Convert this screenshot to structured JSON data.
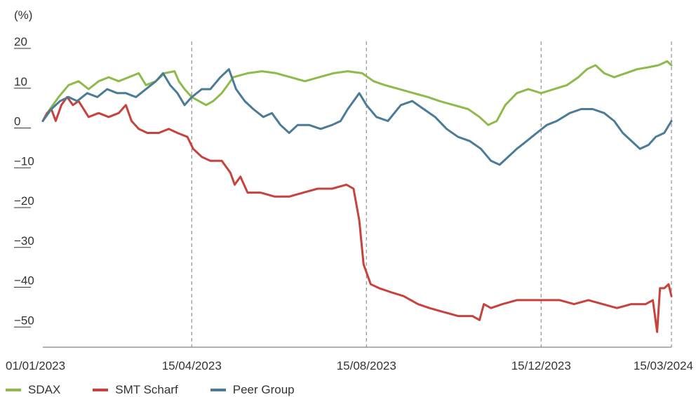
{
  "chart_data": {
    "type": "line",
    "ylabel": "(%)",
    "ylim": [
      -57,
      20
    ],
    "yticks": [
      20,
      10,
      0,
      -10,
      -20,
      -30,
      -40,
      -50
    ],
    "ytick_labels": [
      "20",
      "10",
      "0",
      "−10",
      "−20",
      "−30",
      "−40",
      "−50"
    ],
    "xlim": [
      "2023-01-01",
      "2024-03-15"
    ],
    "x_ticks": [
      {
        "date": "2023-01-01",
        "label": "01/01/2023"
      },
      {
        "date": "2023-04-15",
        "label": "15/04/2023"
      },
      {
        "date": "2023-08-15",
        "label": "15/08/2023"
      },
      {
        "date": "2023-12-15",
        "label": "15/12/2023"
      },
      {
        "date": "2024-03-15",
        "label": "15/03/2024"
      }
    ],
    "vertical_dashed_lines": [
      "2023-04-15",
      "2023-08-15",
      "2023-12-15",
      "2024-03-15"
    ],
    "legend_position": "bottom-left",
    "series": [
      {
        "name": "SDAX",
        "color": "#8dba4a",
        "points": [
          [
            "2023-01-01",
            0
          ],
          [
            "2023-01-06",
            3
          ],
          [
            "2023-01-12",
            6
          ],
          [
            "2023-01-19",
            9
          ],
          [
            "2023-01-26",
            10
          ],
          [
            "2023-02-02",
            8
          ],
          [
            "2023-02-09",
            10
          ],
          [
            "2023-02-16",
            11
          ],
          [
            "2023-02-23",
            10
          ],
          [
            "2023-03-02",
            11
          ],
          [
            "2023-03-09",
            12
          ],
          [
            "2023-03-14",
            9
          ],
          [
            "2023-03-21",
            10
          ],
          [
            "2023-03-27",
            12
          ],
          [
            "2023-04-03",
            12.5
          ],
          [
            "2023-04-06",
            10
          ],
          [
            "2023-04-10",
            8
          ],
          [
            "2023-04-15",
            6
          ],
          [
            "2023-04-20",
            5
          ],
          [
            "2023-04-25",
            4
          ],
          [
            "2023-04-30",
            5
          ],
          [
            "2023-05-06",
            7
          ],
          [
            "2023-05-14",
            11
          ],
          [
            "2023-05-24",
            12
          ],
          [
            "2023-06-03",
            12.5
          ],
          [
            "2023-06-13",
            12
          ],
          [
            "2023-06-23",
            11
          ],
          [
            "2023-07-03",
            10
          ],
          [
            "2023-07-13",
            11
          ],
          [
            "2023-07-23",
            12
          ],
          [
            "2023-08-02",
            12.5
          ],
          [
            "2023-08-12",
            12
          ],
          [
            "2023-08-20",
            10
          ],
          [
            "2023-08-28",
            9
          ],
          [
            "2023-09-07",
            8
          ],
          [
            "2023-09-17",
            7
          ],
          [
            "2023-09-27",
            6
          ],
          [
            "2023-10-05",
            5
          ],
          [
            "2023-10-15",
            4
          ],
          [
            "2023-10-25",
            3
          ],
          [
            "2023-11-02",
            1
          ],
          [
            "2023-11-08",
            -1
          ],
          [
            "2023-11-14",
            0
          ],
          [
            "2023-11-20",
            4
          ],
          [
            "2023-11-28",
            7
          ],
          [
            "2023-12-06",
            8
          ],
          [
            "2023-12-15",
            7
          ],
          [
            "2023-12-24",
            8
          ],
          [
            "2024-01-02",
            9
          ],
          [
            "2024-01-10",
            11
          ],
          [
            "2024-01-16",
            13
          ],
          [
            "2024-01-22",
            14
          ],
          [
            "2024-01-28",
            12
          ],
          [
            "2024-02-04",
            11
          ],
          [
            "2024-02-12",
            12
          ],
          [
            "2024-02-20",
            13
          ],
          [
            "2024-02-28",
            13.5
          ],
          [
            "2024-03-06",
            14
          ],
          [
            "2024-03-12",
            15
          ],
          [
            "2024-03-15",
            14
          ]
        ]
      },
      {
        "name": "SMT Scharf",
        "color": "#c8413c",
        "points": [
          [
            "2023-01-01",
            0
          ],
          [
            "2023-01-04",
            2
          ],
          [
            "2023-01-07",
            3
          ],
          [
            "2023-01-10",
            0
          ],
          [
            "2023-01-14",
            4
          ],
          [
            "2023-01-18",
            6
          ],
          [
            "2023-01-22",
            4
          ],
          [
            "2023-01-26",
            5
          ],
          [
            "2023-02-02",
            1
          ],
          [
            "2023-02-09",
            2
          ],
          [
            "2023-02-16",
            1
          ],
          [
            "2023-02-23",
            2
          ],
          [
            "2023-02-28",
            4
          ],
          [
            "2023-03-04",
            0
          ],
          [
            "2023-03-09",
            -2
          ],
          [
            "2023-03-15",
            -3
          ],
          [
            "2023-03-23",
            -3
          ],
          [
            "2023-03-30",
            -2
          ],
          [
            "2023-04-05",
            -3
          ],
          [
            "2023-04-12",
            -4
          ],
          [
            "2023-04-16",
            -7
          ],
          [
            "2023-04-22",
            -9
          ],
          [
            "2023-04-28",
            -10
          ],
          [
            "2023-05-06",
            -10
          ],
          [
            "2023-05-12",
            -13
          ],
          [
            "2023-05-15",
            -16
          ],
          [
            "2023-05-19",
            -14
          ],
          [
            "2023-05-24",
            -18
          ],
          [
            "2023-06-02",
            -18
          ],
          [
            "2023-06-12",
            -19
          ],
          [
            "2023-06-22",
            -19
          ],
          [
            "2023-07-02",
            -18
          ],
          [
            "2023-07-12",
            -17
          ],
          [
            "2023-07-22",
            -17
          ],
          [
            "2023-08-01",
            -16
          ],
          [
            "2023-08-06",
            -17
          ],
          [
            "2023-08-10",
            -25
          ],
          [
            "2023-08-13",
            -36
          ],
          [
            "2023-08-18",
            -41
          ],
          [
            "2023-08-24",
            -42
          ],
          [
            "2023-09-01",
            -43
          ],
          [
            "2023-09-10",
            -44
          ],
          [
            "2023-09-20",
            -46
          ],
          [
            "2023-09-28",
            -47
          ],
          [
            "2023-10-08",
            -48
          ],
          [
            "2023-10-18",
            -49
          ],
          [
            "2023-10-28",
            -49
          ],
          [
            "2023-11-02",
            -50
          ],
          [
            "2023-11-05",
            -46
          ],
          [
            "2023-11-10",
            -47
          ],
          [
            "2023-11-18",
            -46
          ],
          [
            "2023-11-28",
            -45
          ],
          [
            "2023-12-08",
            -45
          ],
          [
            "2023-12-18",
            -45
          ],
          [
            "2023-12-28",
            -45
          ],
          [
            "2024-01-07",
            -46
          ],
          [
            "2024-01-17",
            -45
          ],
          [
            "2024-01-27",
            -46
          ],
          [
            "2024-02-06",
            -47
          ],
          [
            "2024-02-16",
            -46
          ],
          [
            "2024-02-26",
            -46
          ],
          [
            "2024-03-02",
            -45
          ],
          [
            "2024-03-05",
            -53
          ],
          [
            "2024-03-07",
            -42
          ],
          [
            "2024-03-10",
            -42
          ],
          [
            "2024-03-13",
            -41
          ],
          [
            "2024-03-15",
            -44
          ]
        ]
      },
      {
        "name": "Peer Group",
        "color": "#4b7b96",
        "points": [
          [
            "2023-01-01",
            0
          ],
          [
            "2023-01-07",
            3
          ],
          [
            "2023-01-13",
            5
          ],
          [
            "2023-01-19",
            6
          ],
          [
            "2023-01-25",
            5
          ],
          [
            "2023-02-01",
            7
          ],
          [
            "2023-02-08",
            6
          ],
          [
            "2023-02-15",
            8
          ],
          [
            "2023-02-22",
            7
          ],
          [
            "2023-02-28",
            7
          ],
          [
            "2023-03-07",
            6
          ],
          [
            "2023-03-14",
            8
          ],
          [
            "2023-03-21",
            10
          ],
          [
            "2023-03-26",
            12
          ],
          [
            "2023-03-31",
            9
          ],
          [
            "2023-04-05",
            7
          ],
          [
            "2023-04-10",
            4
          ],
          [
            "2023-04-15",
            6
          ],
          [
            "2023-04-22",
            8
          ],
          [
            "2023-04-28",
            8
          ],
          [
            "2023-05-05",
            11
          ],
          [
            "2023-05-11",
            13
          ],
          [
            "2023-05-16",
            8
          ],
          [
            "2023-05-22",
            5
          ],
          [
            "2023-05-28",
            3
          ],
          [
            "2023-06-04",
            1
          ],
          [
            "2023-06-10",
            2
          ],
          [
            "2023-06-16",
            -1
          ],
          [
            "2023-06-22",
            -3
          ],
          [
            "2023-06-28",
            -1
          ],
          [
            "2023-07-06",
            -1
          ],
          [
            "2023-07-14",
            -2
          ],
          [
            "2023-07-22",
            -1
          ],
          [
            "2023-07-28",
            0
          ],
          [
            "2023-08-02",
            3
          ],
          [
            "2023-08-06",
            5
          ],
          [
            "2023-08-10",
            7
          ],
          [
            "2023-08-15",
            4
          ],
          [
            "2023-08-22",
            1
          ],
          [
            "2023-08-30",
            0
          ],
          [
            "2023-09-08",
            4
          ],
          [
            "2023-09-16",
            5
          ],
          [
            "2023-09-24",
            3
          ],
          [
            "2023-10-02",
            1
          ],
          [
            "2023-10-10",
            -2
          ],
          [
            "2023-10-18",
            -4
          ],
          [
            "2023-10-26",
            -5
          ],
          [
            "2023-11-03",
            -7
          ],
          [
            "2023-11-10",
            -10
          ],
          [
            "2023-11-16",
            -11
          ],
          [
            "2023-11-22",
            -9
          ],
          [
            "2023-11-28",
            -7
          ],
          [
            "2023-12-05",
            -5
          ],
          [
            "2023-12-12",
            -3
          ],
          [
            "2023-12-19",
            -1
          ],
          [
            "2023-12-26",
            0
          ],
          [
            "2024-01-04",
            2
          ],
          [
            "2024-01-12",
            3
          ],
          [
            "2024-01-20",
            3
          ],
          [
            "2024-01-28",
            2
          ],
          [
            "2024-02-04",
            0
          ],
          [
            "2024-02-10",
            -3
          ],
          [
            "2024-02-16",
            -5
          ],
          [
            "2024-02-22",
            -7
          ],
          [
            "2024-02-28",
            -6
          ],
          [
            "2024-03-04",
            -4
          ],
          [
            "2024-03-10",
            -3
          ],
          [
            "2024-03-15",
            0
          ]
        ]
      }
    ]
  }
}
